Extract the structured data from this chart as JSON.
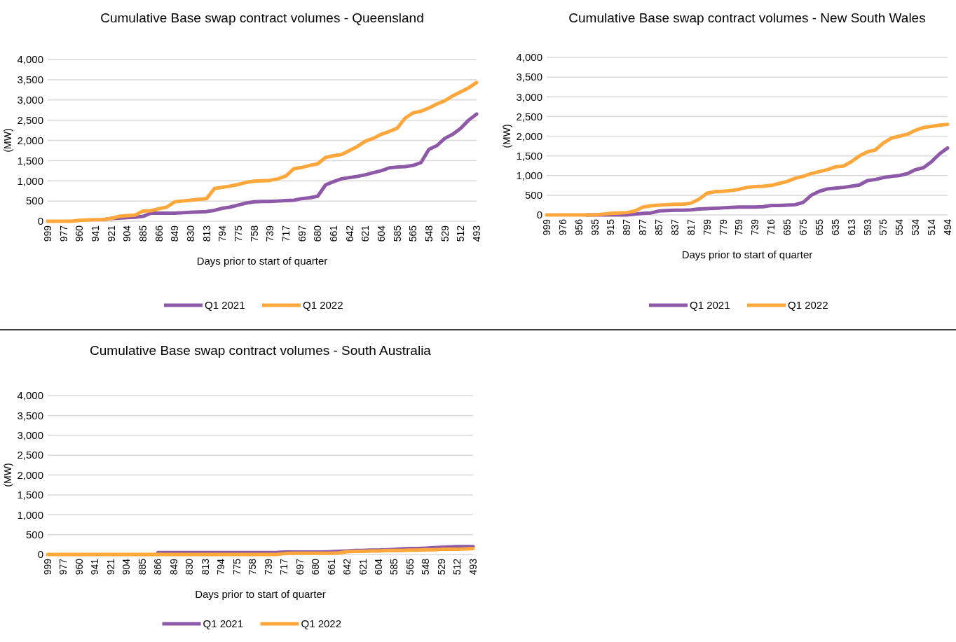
{
  "chart_data": [
    {
      "type": "line",
      "title": "Cumulative Base swap contract volumes - Queensland",
      "xlabel": "Days prior to start of quarter",
      "ylabel": "(MW)",
      "categories": [
        "999",
        null,
        "977",
        null,
        "960",
        null,
        "941",
        null,
        "921",
        null,
        "904",
        null,
        "885",
        null,
        "866",
        null,
        "849",
        null,
        "830",
        null,
        "813",
        null,
        "794",
        null,
        "775",
        null,
        "758",
        null,
        "739",
        null,
        "717",
        null,
        "697",
        null,
        "680",
        null,
        "661",
        null,
        "642",
        null,
        "621",
        null,
        "604",
        null,
        "585",
        null,
        "565",
        null,
        "548",
        null,
        "529",
        null,
        "512",
        null,
        "493"
      ],
      "series": [
        {
          "name": "Q1 2021",
          "color": "#8e59a8",
          "values": [
            null,
            null,
            null,
            null,
            null,
            null,
            null,
            40,
            70,
            80,
            90,
            100,
            120,
            200,
            200,
            200,
            200,
            210,
            220,
            230,
            240,
            270,
            320,
            350,
            400,
            450,
            480,
            490,
            490,
            500,
            510,
            520,
            560,
            580,
            620,
            900,
            980,
            1050,
            1080,
            1110,
            1150,
            1200,
            1250,
            1320,
            1340,
            1350,
            1380,
            1450,
            1780,
            1870,
            2050,
            2150,
            2300,
            2500,
            2650
          ]
        },
        {
          "name": "Q1 2022",
          "color": "#ffa73b",
          "values": [
            0,
            0,
            0,
            0,
            20,
            30,
            40,
            40,
            70,
            120,
            140,
            150,
            250,
            260,
            310,
            350,
            480,
            500,
            520,
            540,
            560,
            810,
            840,
            870,
            910,
            960,
            990,
            1000,
            1010,
            1050,
            1120,
            1300,
            1330,
            1380,
            1420,
            1580,
            1620,
            1650,
            1750,
            1850,
            1980,
            2050,
            2150,
            2220,
            2300,
            2550,
            2680,
            2720,
            2800,
            2900,
            2980,
            3100,
            3200,
            3300,
            3430
          ]
        }
      ],
      "ylim": [
        0,
        4000
      ],
      "yticks": [
        {
          "value": 0,
          "label": "0"
        },
        {
          "value": 500,
          "label": "500"
        },
        {
          "value": 1000,
          "label": "1,000"
        },
        {
          "value": 1500,
          "label": "1,500"
        },
        {
          "value": 2000,
          "label": "2,000"
        },
        {
          "value": 2500,
          "label": "2,500"
        },
        {
          "value": 3000,
          "label": "3,000"
        },
        {
          "value": 3500,
          "label": "3,500"
        },
        {
          "value": 4000,
          "label": "4,000"
        }
      ],
      "grid": "y",
      "legend": "bottom",
      "marker": "none",
      "line_style": "solid"
    },
    {
      "type": "line",
      "title": "Cumulative Base swap contract volumes - New South Wales",
      "xlabel": "Days prior to start of quarter",
      "ylabel": "(MW)",
      "categories": [
        "999",
        null,
        "976",
        null,
        "956",
        null,
        "935",
        null,
        "915",
        null,
        "897",
        null,
        "877",
        null,
        "857",
        null,
        "837",
        null,
        "817",
        null,
        "799",
        null,
        "779",
        null,
        "759",
        null,
        "739",
        null,
        "716",
        null,
        "695",
        null,
        "675",
        null,
        "655",
        null,
        "635",
        null,
        "613",
        null,
        "593",
        null,
        "575",
        null,
        "554",
        null,
        "534",
        null,
        "514",
        null,
        "494"
      ],
      "series": [
        {
          "name": "Q1 2021",
          "color": "#8e59a8",
          "values": [
            null,
            null,
            null,
            null,
            null,
            0,
            0,
            0,
            0,
            0,
            0,
            20,
            40,
            50,
            100,
            110,
            120,
            120,
            130,
            150,
            160,
            170,
            180,
            190,
            200,
            200,
            200,
            210,
            240,
            240,
            250,
            260,
            320,
            500,
            600,
            660,
            680,
            700,
            730,
            760,
            870,
            900,
            950,
            980,
            1000,
            1050,
            1150,
            1200,
            1350,
            1550,
            1700
          ]
        },
        {
          "name": "Q1 2022",
          "color": "#ffa73b",
          "values": [
            0,
            0,
            0,
            0,
            0,
            0,
            0,
            20,
            40,
            50,
            60,
            100,
            200,
            230,
            250,
            260,
            270,
            270,
            300,
            400,
            550,
            590,
            600,
            620,
            650,
            700,
            720,
            730,
            750,
            800,
            850,
            930,
            980,
            1050,
            1100,
            1150,
            1220,
            1240,
            1350,
            1500,
            1600,
            1650,
            1830,
            1950,
            2000,
            2050,
            2150,
            2220,
            2250,
            2280,
            2300
          ]
        }
      ],
      "ylim": [
        0,
        4000
      ],
      "yticks": [
        {
          "value": 0,
          "label": "0"
        },
        {
          "value": 500,
          "label": "500"
        },
        {
          "value": 1000,
          "label": "1,000"
        },
        {
          "value": 1500,
          "label": "1,500"
        },
        {
          "value": 2000,
          "label": "2,000"
        },
        {
          "value": 2500,
          "label": "2,500"
        },
        {
          "value": 3000,
          "label": "3,000"
        },
        {
          "value": 3500,
          "label": "3,500"
        },
        {
          "value": 4000,
          "label": "4,000"
        }
      ],
      "grid": "y",
      "legend": "bottom",
      "marker": "none",
      "line_style": "solid"
    },
    {
      "type": "line",
      "title": "Cumulative Base swap contract volumes - South Australia",
      "xlabel": "Days prior to start of quarter",
      "ylabel": "(MW)",
      "categories": [
        "999",
        null,
        "977",
        null,
        "960",
        null,
        "941",
        null,
        "921",
        null,
        "904",
        null,
        "885",
        null,
        "866",
        null,
        "849",
        null,
        "830",
        null,
        "813",
        null,
        "794",
        null,
        "775",
        null,
        "758",
        null,
        "739",
        null,
        "717",
        null,
        "697",
        null,
        "680",
        null,
        "661",
        null,
        "642",
        null,
        "621",
        null,
        "604",
        null,
        "585",
        null,
        "565",
        null,
        "548",
        null,
        "529",
        null,
        "512",
        null,
        "493"
      ],
      "series": [
        {
          "name": "Q1 2021",
          "color": "#8e59a8",
          "values": [
            null,
            null,
            null,
            null,
            null,
            null,
            null,
            null,
            null,
            null,
            null,
            null,
            null,
            null,
            50,
            50,
            50,
            50,
            50,
            50,
            50,
            50,
            50,
            50,
            50,
            50,
            50,
            50,
            50,
            50,
            60,
            60,
            60,
            60,
            60,
            60,
            70,
            80,
            90,
            100,
            100,
            110,
            110,
            120,
            130,
            140,
            150,
            150,
            160,
            170,
            180,
            190,
            200,
            200,
            200
          ]
        },
        {
          "name": "Q1 2022",
          "color": "#ffa73b",
          "values": [
            0,
            0,
            0,
            0,
            0,
            0,
            0,
            0,
            0,
            0,
            0,
            0,
            0,
            0,
            0,
            0,
            0,
            0,
            0,
            0,
            0,
            0,
            0,
            0,
            0,
            0,
            0,
            0,
            0,
            0,
            20,
            30,
            30,
            30,
            30,
            30,
            30,
            40,
            70,
            80,
            80,
            90,
            90,
            100,
            100,
            100,
            110,
            110,
            120,
            120,
            130,
            130,
            130,
            140,
            150
          ]
        }
      ],
      "ylim": [
        0,
        4000
      ],
      "yticks": [
        {
          "value": 0,
          "label": "0"
        },
        {
          "value": 500,
          "label": "500"
        },
        {
          "value": 1000,
          "label": "1,000"
        },
        {
          "value": 1500,
          "label": "1,500"
        },
        {
          "value": 2000,
          "label": "2,000"
        },
        {
          "value": 2500,
          "label": "2,500"
        },
        {
          "value": 3000,
          "label": "3,000"
        },
        {
          "value": 3500,
          "label": "3,500"
        },
        {
          "value": 4000,
          "label": "4,000"
        }
      ],
      "grid": "y",
      "legend": "bottom",
      "marker": "none",
      "line_style": "solid"
    }
  ]
}
